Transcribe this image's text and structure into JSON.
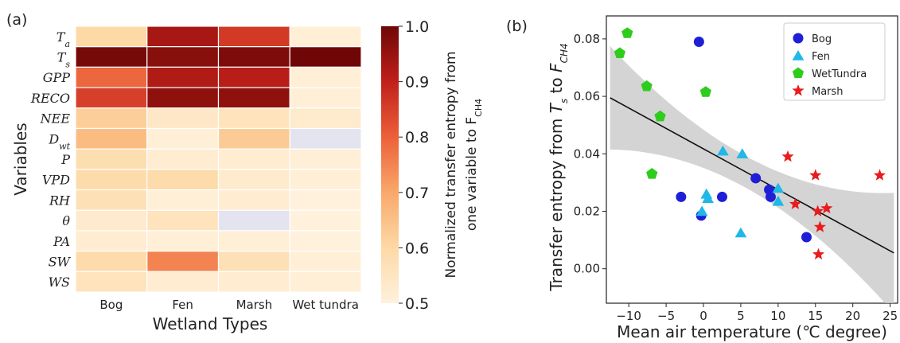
{
  "chart_data": [
    {
      "panel": "(a)",
      "type": "heatmap",
      "xlabel": "Wetland Types",
      "ylabel": "Variables",
      "columns": [
        "Bog",
        "Fen",
        "Marsh",
        "Wet tundra"
      ],
      "rows": [
        "Ta",
        "Ts",
        "GPP",
        "RECO",
        "NEE",
        "Dwt",
        "P",
        "VPD",
        "RH",
        "θ",
        "PA",
        "SW",
        "WS"
      ],
      "row_subscripts": [
        "a",
        "s",
        "",
        "",
        "",
        "wt",
        "",
        "",
        "",
        "",
        "",
        "",
        ""
      ],
      "row_bases": [
        "T",
        "T",
        "GPP",
        "RECO",
        "NEE",
        "D",
        "P",
        "VPD",
        "RH",
        "θ",
        "PA",
        "SW",
        "WS"
      ],
      "values": [
        [
          0.6,
          0.93,
          0.86,
          0.51
        ],
        [
          0.99,
          0.97,
          0.98,
          1.0
        ],
        [
          0.79,
          0.92,
          0.91,
          0.51
        ],
        [
          0.85,
          0.96,
          0.96,
          0.51
        ],
        [
          0.62,
          0.54,
          0.56,
          0.53
        ],
        [
          0.66,
          0.51,
          0.63,
          null
        ],
        [
          0.58,
          0.52,
          0.52,
          0.51
        ],
        [
          0.59,
          0.59,
          0.53,
          0.51
        ],
        [
          0.57,
          0.51,
          0.52,
          0.5
        ],
        [
          0.53,
          0.56,
          null,
          0.5
        ],
        [
          0.52,
          0.51,
          0.51,
          0.5
        ],
        [
          0.59,
          0.75,
          0.57,
          0.51
        ],
        [
          0.56,
          0.52,
          0.52,
          0.51
        ]
      ],
      "missing_color": "#e4e4f0",
      "colorbar": {
        "min": 0.5,
        "max": 1.0,
        "ticks": [
          "0.5",
          "0.6",
          "0.7",
          "0.8",
          "0.9",
          "1.0"
        ],
        "label_line1": "Normalized transfer entropy from",
        "label_line2_base": "one variable to F",
        "label_line2_sub": "CH4"
      }
    },
    {
      "panel": "(b)",
      "type": "scatter",
      "xlabel": "Mean air temperature (℃ degree)",
      "ylabel_parts": [
        "Transfer entropy from ",
        "T",
        "s",
        " to ",
        "F",
        "CH4"
      ],
      "xlim": [
        -13,
        26
      ],
      "ylim": [
        -0.012,
        0.088
      ],
      "xticks": [
        -10,
        -5,
        0,
        5,
        10,
        15,
        20,
        25
      ],
      "xtick_labels": [
        "−10",
        "−5",
        "0",
        "5",
        "10",
        "15",
        "20",
        "25"
      ],
      "yticks": [
        0.0,
        0.02,
        0.04,
        0.06,
        0.08
      ],
      "ytick_labels": [
        "0.00",
        "0.02",
        "0.04",
        "0.06",
        "0.08"
      ],
      "regression": {
        "x": [
          -12.5,
          25.5
        ],
        "y": [
          0.0595,
          0.0055
        ]
      },
      "series": [
        {
          "name": "Bog",
          "marker": "circle",
          "color": "#1f1fd6",
          "points": [
            [
              -0.6,
              0.079
            ],
            [
              -3.0,
              0.025
            ],
            [
              2.5,
              0.025
            ],
            [
              7.0,
              0.0315
            ],
            [
              8.8,
              0.0275
            ],
            [
              9.0,
              0.025
            ],
            [
              -0.3,
              0.0185
            ],
            [
              13.8,
              0.011
            ]
          ]
        },
        {
          "name": "Fen",
          "marker": "triangle",
          "color": "#1fb8e8",
          "points": [
            [
              2.6,
              0.041
            ],
            [
              5.2,
              0.04
            ],
            [
              0.4,
              0.026
            ],
            [
              0.6,
              0.0245
            ],
            [
              -0.2,
              0.02
            ],
            [
              10.0,
              0.028
            ],
            [
              10.0,
              0.0235
            ],
            [
              5.0,
              0.0125
            ]
          ]
        },
        {
          "name": "WetTundra",
          "marker": "pentagon",
          "color": "#2ecc1c",
          "points": [
            [
              -10.2,
              0.082
            ],
            [
              -11.2,
              0.075
            ],
            [
              -7.6,
              0.0635
            ],
            [
              -5.8,
              0.053
            ],
            [
              0.3,
              0.0615
            ],
            [
              -6.9,
              0.033
            ]
          ]
        },
        {
          "name": "Marsh",
          "marker": "star",
          "color": "#e81c1c",
          "points": [
            [
              11.3,
              0.039
            ],
            [
              15.0,
              0.0325
            ],
            [
              23.6,
              0.0325
            ],
            [
              12.3,
              0.0225
            ],
            [
              15.3,
              0.02
            ],
            [
              16.5,
              0.021
            ],
            [
              15.6,
              0.0145
            ],
            [
              15.4,
              0.005
            ]
          ]
        }
      ],
      "legend_position": "top-right"
    }
  ]
}
